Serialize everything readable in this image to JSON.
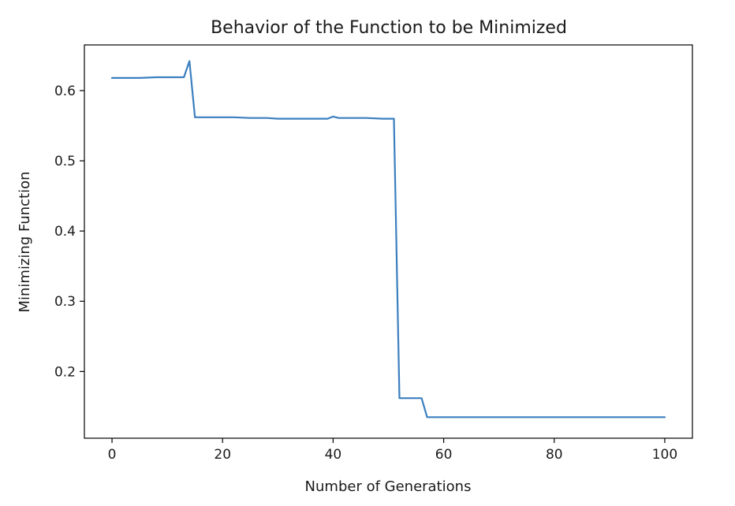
{
  "chart_data": {
    "type": "line",
    "title": "Behavior of the Function to be Minimized",
    "xlabel": "Number of Generations",
    "ylabel": "Minimizing Function",
    "xlim": [
      -5,
      105
    ],
    "ylim": [
      0.105,
      0.665
    ],
    "xticks": [
      0,
      20,
      40,
      60,
      80,
      100
    ],
    "yticks": [
      0.2,
      0.3,
      0.4,
      0.5,
      0.6
    ],
    "xtick_labels": [
      "0",
      "20",
      "40",
      "60",
      "80",
      "100"
    ],
    "ytick_labels": [
      "0.2",
      "0.3",
      "0.4",
      "0.5",
      "0.6"
    ],
    "grid": false,
    "series": [
      {
        "color": "#3b7fbf",
        "x": [
          0,
          5,
          8,
          10,
          13,
          14,
          15,
          18,
          20,
          22,
          25,
          28,
          30,
          33,
          36,
          39,
          40,
          41,
          43,
          46,
          49,
          51,
          52,
          53,
          55,
          56,
          57,
          60,
          70,
          80,
          90,
          100
        ],
        "y": [
          0.618,
          0.618,
          0.619,
          0.619,
          0.619,
          0.642,
          0.562,
          0.562,
          0.562,
          0.562,
          0.561,
          0.561,
          0.56,
          0.56,
          0.56,
          0.56,
          0.563,
          0.561,
          0.561,
          0.561,
          0.56,
          0.56,
          0.162,
          0.162,
          0.162,
          0.162,
          0.135,
          0.135,
          0.135,
          0.135,
          0.135,
          0.135
        ]
      }
    ]
  }
}
